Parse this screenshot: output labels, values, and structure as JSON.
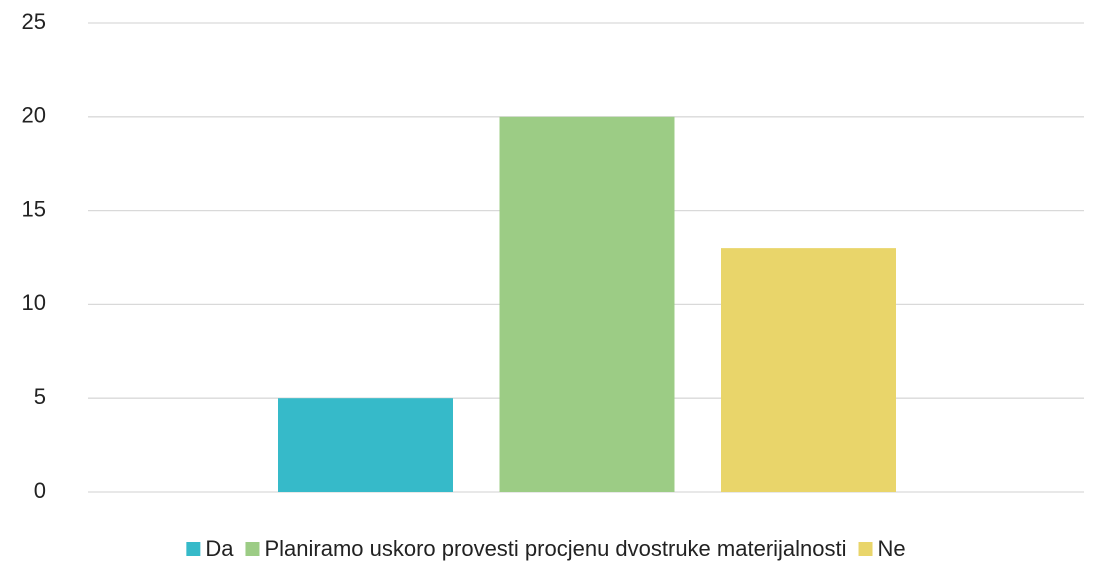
{
  "chart_data": {
    "type": "bar",
    "series": [
      {
        "name": "Da",
        "color": "#36bac9",
        "values": [
          5
        ]
      },
      {
        "name": "Planiramo uskoro provesti procjenu dvostruke materijalnosti",
        "color": "#9ccc85",
        "values": [
          20
        ]
      },
      {
        "name": "Ne",
        "color": "#e9d56a",
        "values": [
          13
        ]
      }
    ],
    "ylim": [
      0,
      25
    ],
    "yticks": [
      0,
      5,
      10,
      15,
      20,
      25
    ],
    "grid": true,
    "legend": "bottom"
  }
}
